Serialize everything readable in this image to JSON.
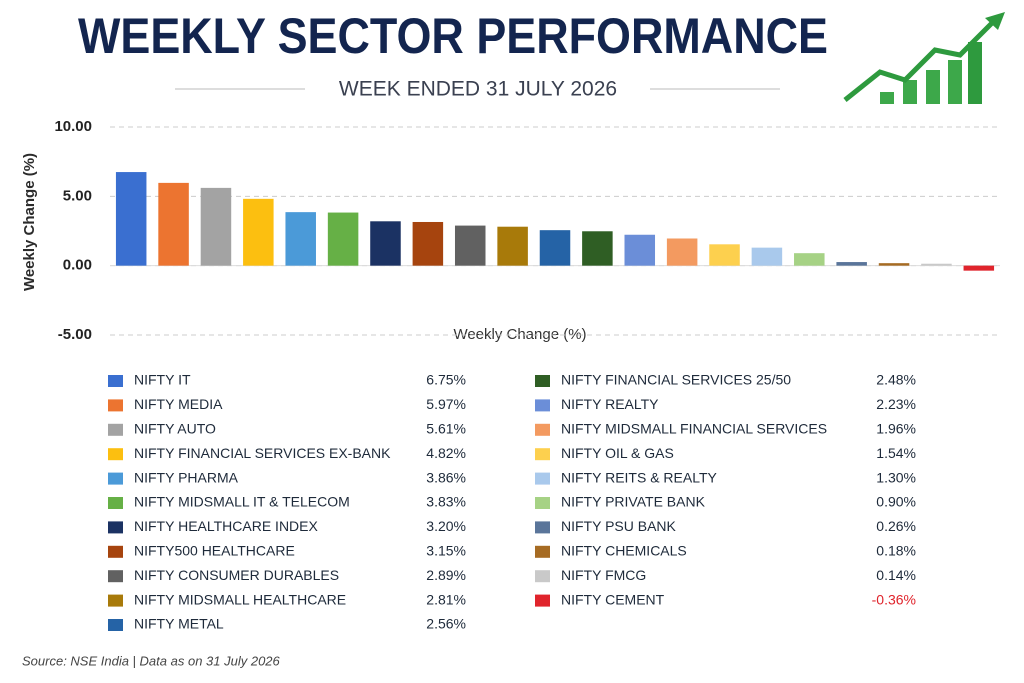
{
  "chart_data": {
    "type": "bar",
    "title": "WEEKLY SECTOR PERFORMANCE",
    "subtitle": "WEEK ENDED 31 JULY 2026",
    "ylabel": "Weekly Change (%)",
    "xlabel": "Weekly Change (%)",
    "source": "Source: NSE India  |  Data as on 31 July 2026",
    "categories": [
      "NIFTY IT",
      "NIFTY MEDIA",
      "NIFTY AUTO",
      "NIFTY FINANCIAL SERVICES EX-BANK",
      "NIFTY PHARMA",
      "NIFTY MIDSMALL IT & TELECOM",
      "NIFTY HEALTHCARE INDEX",
      "NIFTY500 HEALTHCARE",
      "NIFTY CONSUMER DURABLES",
      "NIFTY MIDSMALL HEALTHCARE",
      "NIFTY METAL",
      "NIFTY FINANCIAL SERVICES 25/50",
      "NIFTY REALTY",
      "NIFTY MIDSMALL FINANCIAL SERVICES",
      "NIFTY OIL & GAS",
      "NIFTY REITS & REALTY",
      "NIFTY PRIVATE BANK",
      "NIFTY PSU BANK",
      "NIFTY CHEMICALS",
      "NIFTY FMCG",
      "NIFTY CEMENT"
    ],
    "values": [
      6.75,
      5.97,
      5.61,
      4.82,
      3.86,
      3.83,
      3.2,
      3.15,
      2.89,
      2.81,
      2.56,
      2.48,
      2.23,
      1.96,
      1.54,
      1.3,
      0.9,
      0.26,
      0.18,
      0.14,
      -0.36
    ],
    "value_labels": [
      "6.75%",
      "5.97%",
      "5.61%",
      "4.82%",
      "3.86%",
      "3.83%",
      "3.20%",
      "3.15%",
      "2.89%",
      "2.81%",
      "2.56%",
      "2.48%",
      "2.23%",
      "1.96%",
      "1.54%",
      "1.30%",
      "0.90%",
      "0.26%",
      "0.18%",
      "0.14%",
      "-0.36%"
    ],
    "colors": [
      "#3a6fd0",
      "#ec7430",
      "#a3a3a3",
      "#fcbf10",
      "#4b9ad8",
      "#66b046",
      "#1b3263",
      "#a6440e",
      "#616161",
      "#a87a0a",
      "#2563a6",
      "#2f5e24",
      "#6b8ed8",
      "#f39a60",
      "#fdd04e",
      "#a9c9ec",
      "#a6d285",
      "#5a759a",
      "#a66b23",
      "#c9c9c9",
      "#e0242c"
    ],
    "ylim": [
      -5,
      10
    ],
    "yticks": [
      {
        "value": 10,
        "label": "10.00"
      },
      {
        "value": 5,
        "label": "5.00"
      },
      {
        "value": 0,
        "label": "0.00"
      },
      {
        "value": -5,
        "label": "-5.00"
      }
    ],
    "grid": true
  }
}
